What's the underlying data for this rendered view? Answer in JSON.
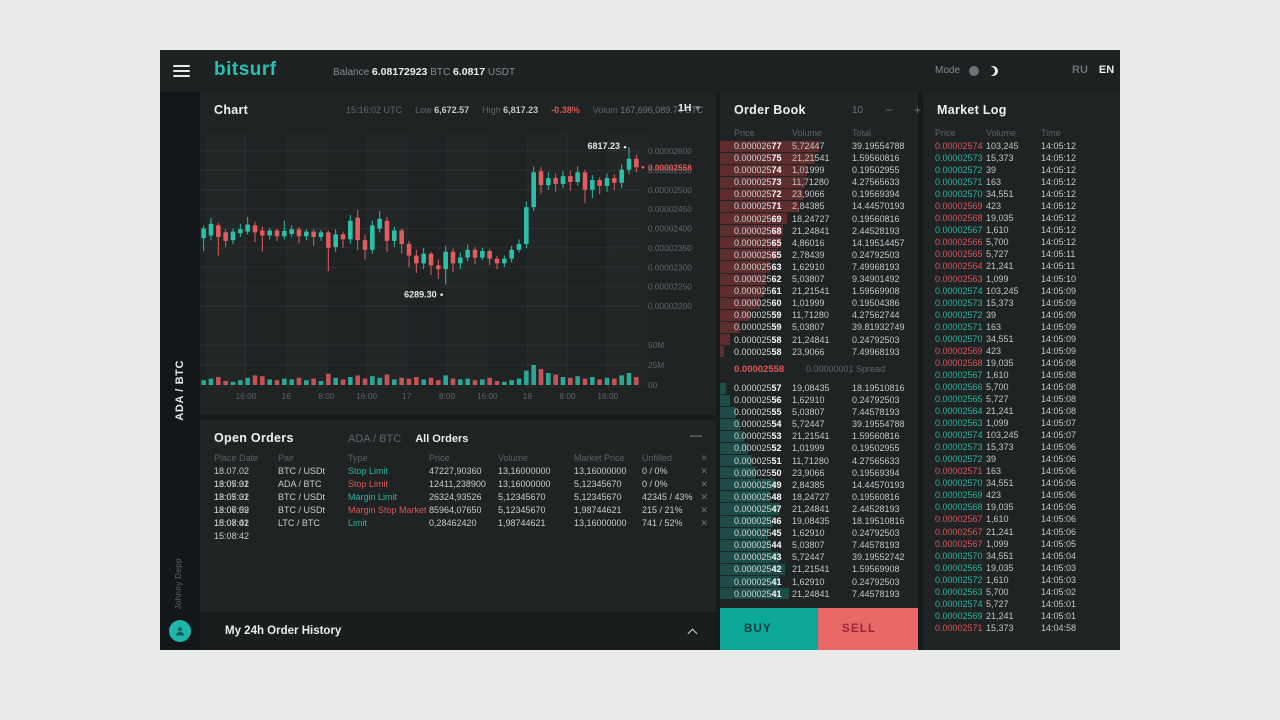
{
  "colors": {
    "accent_teal": "#29c2b2",
    "accent_red": "#e15c5e",
    "candle_up": "#2bc0a9",
    "candle_down": "#e15c5e",
    "buy_bg": "#0ca99b",
    "sell_bg": "#e76867",
    "panel_bg": "#1f2324",
    "window_bg": "#17191b",
    "text_muted": "#5f6567",
    "text_light": "#eceeee"
  },
  "icons": {
    "caret": "▾",
    "minus": "−",
    "plus": "+",
    "close": "✕",
    "collapse": "—"
  },
  "topbar": {
    "logo": "bitsurf",
    "balance_label": "Balance",
    "balance_btc": "6.08172923",
    "btc_unit": "BTC",
    "balance_usdt": "6.0817",
    "usdt_unit": "USDT",
    "mode_label": "Mode",
    "lang_ru": "RU",
    "lang_en": "EN"
  },
  "sidebar": {
    "pair": "ADA / BTC",
    "username": "Johnny Depp"
  },
  "chart": {
    "title": "Chart",
    "time": "15:16:02 UTC",
    "low_label": "Low",
    "low": "6,672.57",
    "high_label": "High",
    "high": "6,817.23",
    "change": "-0.38%",
    "volume_label": "Volum",
    "volume": "167,696,089.74 BTC",
    "interval": "1H",
    "high_marker": "6817.23",
    "low_marker": "6289.30",
    "current_price": "0.00002558"
  },
  "chart_data": {
    "type": "candlestick",
    "title": "ADA/BTC 1H candlestick with volume",
    "y_axis": {
      "ticks": [
        "0.00002600",
        "0.00002550",
        "0.00002500",
        "0.00002450",
        "0.00002400",
        "0.00002350",
        "0.00002300",
        "0.00002250",
        "0.00002200"
      ],
      "tick_values": [
        2600,
        2550,
        2500,
        2450,
        2400,
        2350,
        2300,
        2250,
        2200
      ],
      "unit": "price x 1e-8 BTC"
    },
    "x_axis": {
      "ticks": [
        "16:00",
        "16",
        "8:00",
        "16:00",
        "17",
        "8:00",
        "16:00",
        "18",
        "8:00",
        "16:00"
      ]
    },
    "volume_axis": {
      "ticks": [
        "50M",
        "25M",
        "00"
      ]
    },
    "current_price": "0.00002558",
    "annotations": {
      "high": "6817.23",
      "low": "6289.30"
    },
    "candles_ohlc": [
      [
        2375,
        2408,
        2342,
        2400
      ],
      [
        2382,
        2428,
        2370,
        2412
      ],
      [
        2408,
        2415,
        2330,
        2378
      ],
      [
        2390,
        2398,
        2352,
        2368
      ],
      [
        2370,
        2400,
        2360,
        2392
      ],
      [
        2388,
        2412,
        2378,
        2398
      ],
      [
        2392,
        2430,
        2385,
        2410
      ],
      [
        2408,
        2418,
        2365,
        2390
      ],
      [
        2395,
        2405,
        2340,
        2382
      ],
      [
        2382,
        2402,
        2372,
        2395
      ],
      [
        2395,
        2400,
        2368,
        2380
      ],
      [
        2380,
        2420,
        2372,
        2394
      ],
      [
        2386,
        2408,
        2378,
        2398
      ],
      [
        2398,
        2404,
        2362,
        2380
      ],
      [
        2380,
        2398,
        2370,
        2392
      ],
      [
        2392,
        2398,
        2355,
        2378
      ],
      [
        2378,
        2396,
        2368,
        2390
      ],
      [
        2390,
        2395,
        2290,
        2350
      ],
      [
        2352,
        2398,
        2340,
        2385
      ],
      [
        2385,
        2392,
        2350,
        2372
      ],
      [
        2372,
        2435,
        2360,
        2420
      ],
      [
        2428,
        2448,
        2345,
        2370
      ],
      [
        2370,
        2385,
        2320,
        2345
      ],
      [
        2345,
        2420,
        2335,
        2408
      ],
      [
        2400,
        2445,
        2390,
        2425
      ],
      [
        2420,
        2430,
        2340,
        2368
      ],
      [
        2368,
        2405,
        2352,
        2395
      ],
      [
        2395,
        2400,
        2335,
        2360
      ],
      [
        2360,
        2368,
        2300,
        2330
      ],
      [
        2330,
        2345,
        2285,
        2310
      ],
      [
        2310,
        2350,
        2295,
        2335
      ],
      [
        2335,
        2340,
        2280,
        2305
      ],
      [
        2305,
        2320,
        2270,
        2295
      ],
      [
        2295,
        2355,
        2255,
        2340
      ],
      [
        2340,
        2348,
        2288,
        2310
      ],
      [
        2310,
        2338,
        2295,
        2325
      ],
      [
        2325,
        2358,
        2315,
        2345
      ],
      [
        2345,
        2352,
        2308,
        2325
      ],
      [
        2325,
        2350,
        2318,
        2342
      ],
      [
        2342,
        2348,
        2305,
        2322
      ],
      [
        2322,
        2330,
        2295,
        2310
      ],
      [
        2310,
        2330,
        2300,
        2322
      ],
      [
        2322,
        2355,
        2312,
        2345
      ],
      [
        2345,
        2372,
        2338,
        2360
      ],
      [
        2360,
        2470,
        2350,
        2455
      ],
      [
        2455,
        2560,
        2445,
        2545
      ],
      [
        2548,
        2558,
        2490,
        2512
      ],
      [
        2512,
        2545,
        2500,
        2530
      ],
      [
        2530,
        2542,
        2495,
        2515
      ],
      [
        2515,
        2548,
        2505,
        2535
      ],
      [
        2535,
        2550,
        2498,
        2520
      ],
      [
        2520,
        2560,
        2510,
        2545
      ],
      [
        2545,
        2552,
        2465,
        2500
      ],
      [
        2500,
        2538,
        2478,
        2525
      ],
      [
        2525,
        2532,
        2488,
        2510
      ],
      [
        2510,
        2542,
        2495,
        2530
      ],
      [
        2530,
        2540,
        2500,
        2518
      ],
      [
        2518,
        2565,
        2505,
        2552
      ],
      [
        2552,
        2610,
        2540,
        2580
      ],
      [
        2580,
        2590,
        2545,
        2558
      ]
    ],
    "volumes_m": [
      6,
      8,
      10,
      5,
      4,
      6,
      9,
      12,
      11,
      7,
      6,
      8,
      7,
      9,
      6,
      8,
      5,
      14,
      9,
      7,
      10,
      12,
      8,
      11,
      9,
      13,
      7,
      9,
      8,
      10,
      7,
      9,
      6,
      12,
      8,
      7,
      8,
      6,
      7,
      9,
      5,
      4,
      6,
      8,
      18,
      25,
      20,
      15,
      13,
      10,
      9,
      11,
      8,
      10,
      7,
      9,
      8,
      12,
      15,
      10
    ]
  },
  "order_book": {
    "title": "Order Book",
    "depth_level": "10",
    "columns": [
      "Price",
      "Volume",
      "Total"
    ],
    "sells": [
      {
        "price": "0.00002677",
        "volume": "5,72447",
        "total": "39.19554788",
        "depth": 0.5
      },
      {
        "price": "0.00002575",
        "volume": "21,21541",
        "total": "1.59560816",
        "depth": 0.48
      },
      {
        "price": "0.00002574",
        "volume": "1,01999",
        "total": "0.19502955",
        "depth": 0.44
      },
      {
        "price": "0.00002573",
        "volume": "11,71280",
        "total": "4.27565633",
        "depth": 0.43
      },
      {
        "price": "0.00002572",
        "volume": "23,9066",
        "total": "0.19569394",
        "depth": 0.42
      },
      {
        "price": "0.00002571",
        "volume": "2,84385",
        "total": "14.44570193",
        "depth": 0.4
      },
      {
        "price": "0.00002569",
        "volume": "18,24727",
        "total": "0.19560816",
        "depth": 0.34
      },
      {
        "price": "0.00002568",
        "volume": "21,24841",
        "total": "2.44528193",
        "depth": 0.32
      },
      {
        "price": "0.00002565",
        "volume": "4,86016",
        "total": "14.19514457",
        "depth": 0.31
      },
      {
        "price": "0.00002565",
        "volume": "2,78439",
        "total": "0.24792503",
        "depth": 0.29
      },
      {
        "price": "0.00002563",
        "volume": "1,62910",
        "total": "7.49968193",
        "depth": 0.25
      },
      {
        "price": "0.00002562",
        "volume": "5,03807",
        "total": "9.34901492",
        "depth": 0.23
      },
      {
        "price": "0.00002561",
        "volume": "21,21541",
        "total": "1.59569908",
        "depth": 0.22
      },
      {
        "price": "0.00002560",
        "volume": "1,01999",
        "total": "0.19504386",
        "depth": 0.2
      },
      {
        "price": "0.00002559",
        "volume": "11,71280",
        "total": "4.27562744",
        "depth": 0.15
      },
      {
        "price": "0.00002559",
        "volume": "5,03807",
        "total": "39.81932749",
        "depth": 0.1
      },
      {
        "price": "0.00002558",
        "volume": "21,24841",
        "total": "0.24792503",
        "depth": 0.05
      },
      {
        "price": "0.00002558",
        "volume": "23,9066",
        "total": "7.49968193",
        "depth": 0.02
      }
    ],
    "spread": {
      "price": "0.00002558",
      "text": "0.00000001 Spread"
    },
    "buys": [
      {
        "price": "0.00002557",
        "volume": "19,08435",
        "total": "18.19510816",
        "depth": 0.03
      },
      {
        "price": "0.00002556",
        "volume": "1,62910",
        "total": "0.24792503",
        "depth": 0.05
      },
      {
        "price": "0.00002555",
        "volume": "5,03807",
        "total": "7.44578193",
        "depth": 0.08
      },
      {
        "price": "0.00002554",
        "volume": "5,72447",
        "total": "39.19554788",
        "depth": 0.1
      },
      {
        "price": "0.00002553",
        "volume": "21,21541",
        "total": "1.59560816",
        "depth": 0.12
      },
      {
        "price": "0.00002552",
        "volume": "1,01999",
        "total": "0.19502955",
        "depth": 0.14
      },
      {
        "price": "0.00002551",
        "volume": "11,71280",
        "total": "4.27565633",
        "depth": 0.16
      },
      {
        "price": "0.00002550",
        "volume": "23,9066",
        "total": "0.19569394",
        "depth": 0.18
      },
      {
        "price": "0.00002549",
        "volume": "2,84385",
        "total": "14.44570193",
        "depth": 0.28
      },
      {
        "price": "0.00002548",
        "volume": "18,24727",
        "total": "0.19560816",
        "depth": 0.25
      },
      {
        "price": "0.00002547",
        "volume": "21,24841",
        "total": "2.44528193",
        "depth": 0.3
      },
      {
        "price": "0.00002546",
        "volume": "19,08435",
        "total": "18.19510816",
        "depth": 0.27
      },
      {
        "price": "0.00002545",
        "volume": "1,62910",
        "total": "0.24792503",
        "depth": 0.24
      },
      {
        "price": "0.00002544",
        "volume": "5,03807",
        "total": "7.44578193",
        "depth": 0.26
      },
      {
        "price": "0.00002543",
        "volume": "5,72447",
        "total": "39.19552742",
        "depth": 0.3
      },
      {
        "price": "0.00002542",
        "volume": "21,21541",
        "total": "1.59569908",
        "depth": 0.33
      },
      {
        "price": "0.00002541",
        "volume": "1,62910",
        "total": "0.24792503",
        "depth": 0.3
      },
      {
        "price": "0.00002541",
        "volume": "21,24841",
        "total": "7.44578193",
        "depth": 0.35
      }
    ],
    "buy_label": "BUY",
    "sell_label": "SELL"
  },
  "market_log": {
    "title": "Market Log",
    "columns": [
      "Price",
      "Volume",
      "Time"
    ],
    "rows": [
      {
        "price": "0.00002574",
        "dir": "down",
        "volume": "103,245",
        "time": "14:05:12"
      },
      {
        "price": "0.00002573",
        "dir": "up",
        "volume": "15,373",
        "time": "14:05:12"
      },
      {
        "price": "0.00002572",
        "dir": "up",
        "volume": "39",
        "time": "14:05:12"
      },
      {
        "price": "0.00002571",
        "dir": "up",
        "volume": "163",
        "time": "14:05:12"
      },
      {
        "price": "0.00002570",
        "dir": "up",
        "volume": "34,551",
        "time": "14:05:12"
      },
      {
        "price": "0.00002569",
        "dir": "down",
        "volume": "423",
        "time": "14:05:12"
      },
      {
        "price": "0.00002568",
        "dir": "down",
        "volume": "19,035",
        "time": "14:05:12"
      },
      {
        "price": "0.00002567",
        "dir": "up",
        "volume": "1,610",
        "time": "14:05:12"
      },
      {
        "price": "0.00002566",
        "dir": "down",
        "volume": "5,700",
        "time": "14:05:12"
      },
      {
        "price": "0.00002565",
        "dir": "down",
        "volume": "5,727",
        "time": "14:05:11"
      },
      {
        "price": "0.00002564",
        "dir": "down",
        "volume": "21,241",
        "time": "14:05:11"
      },
      {
        "price": "0.00002563",
        "dir": "down",
        "volume": "1,099",
        "time": "14:05:10"
      },
      {
        "price": "0.00002574",
        "dir": "up",
        "volume": "103,245",
        "time": "14:05:09"
      },
      {
        "price": "0.00002573",
        "dir": "up",
        "volume": "15,373",
        "time": "14:05:09"
      },
      {
        "price": "0.00002572",
        "dir": "up",
        "volume": "39",
        "time": "14:05:09"
      },
      {
        "price": "0.00002571",
        "dir": "up",
        "volume": "163",
        "time": "14:05:09"
      },
      {
        "price": "0.00002570",
        "dir": "up",
        "volume": "34,551",
        "time": "14:05:09"
      },
      {
        "price": "0.00002569",
        "dir": "down",
        "volume": "423",
        "time": "14:05:09"
      },
      {
        "price": "0.00002568",
        "dir": "down",
        "volume": "19,035",
        "time": "14:05:08"
      },
      {
        "price": "0.00002567",
        "dir": "up",
        "volume": "1,610",
        "time": "14:05:08"
      },
      {
        "price": "0.00002566",
        "dir": "up",
        "volume": "5,700",
        "time": "14:05:08"
      },
      {
        "price": "0.00002565",
        "dir": "up",
        "volume": "5,727",
        "time": "14:05:08"
      },
      {
        "price": "0.00002564",
        "dir": "up",
        "volume": "21,241",
        "time": "14:05:08"
      },
      {
        "price": "0.00002563",
        "dir": "up",
        "volume": "1,099",
        "time": "14:05:07"
      },
      {
        "price": "0.00002574",
        "dir": "up",
        "volume": "103,245",
        "time": "14:05:07"
      },
      {
        "price": "0.00002573",
        "dir": "up",
        "volume": "15,373",
        "time": "14:05:06"
      },
      {
        "price": "0.00002572",
        "dir": "up",
        "volume": "39",
        "time": "14:05:06"
      },
      {
        "price": "0.00002571",
        "dir": "down",
        "volume": "163",
        "time": "14:05:06"
      },
      {
        "price": "0.00002570",
        "dir": "up",
        "volume": "34,551",
        "time": "14:05:06"
      },
      {
        "price": "0.00002569",
        "dir": "up",
        "volume": "423",
        "time": "14:05:06"
      },
      {
        "price": "0.00002568",
        "dir": "up",
        "volume": "19,035",
        "time": "14:05:06"
      },
      {
        "price": "0.00002567",
        "dir": "down",
        "volume": "1,610",
        "time": "14:05:06"
      },
      {
        "price": "0.00002567",
        "dir": "down",
        "volume": "21,241",
        "time": "14:05:06"
      },
      {
        "price": "0.00002567",
        "dir": "down",
        "volume": "1,099",
        "time": "14:05:05"
      },
      {
        "price": "0.00002570",
        "dir": "up",
        "volume": "34,551",
        "time": "14:05:04"
      },
      {
        "price": "0.00002565",
        "dir": "up",
        "volume": "19,035",
        "time": "14:05:03"
      },
      {
        "price": "0.00002572",
        "dir": "up",
        "volume": "1,610",
        "time": "14:05:03"
      },
      {
        "price": "0.00002563",
        "dir": "up",
        "volume": "5,700",
        "time": "14:05:02"
      },
      {
        "price": "0.00002574",
        "dir": "up",
        "volume": "5,727",
        "time": "14:05:01"
      },
      {
        "price": "0.00002569",
        "dir": "up",
        "volume": "21,241",
        "time": "14:05:01"
      },
      {
        "price": "0.00002571",
        "dir": "down",
        "volume": "15,373",
        "time": "14:04:58"
      }
    ]
  },
  "open_orders": {
    "title": "Open Orders",
    "tab_pair": "ADA / BTC",
    "tab_all": "All Orders",
    "columns": [
      "Place Date",
      "Pair",
      "Type",
      "Price",
      "Volume",
      "Market Price",
      "Unfilled"
    ],
    "rows": [
      {
        "date": "18.07.02 13:05:31",
        "pair": "BTC / USDt",
        "type": "Stop Limit",
        "side": "up",
        "price": "47227,90360",
        "volume": "13,16000000",
        "market_price": "13,16000000",
        "unfilled": "0 / 0%"
      },
      {
        "date": "18.07.02 13:05:31",
        "pair": "ADA / BTC",
        "type": "Stop Limit",
        "side": "down",
        "price": "12411,238900",
        "volume": "13,16000000",
        "market_price": "5,12345670",
        "unfilled": "0 / 0%"
      },
      {
        "date": "18.07.02 13:06:59",
        "pair": "BTC / USDt",
        "type": "Margin Limit",
        "side": "up",
        "price": "26324,93526",
        "volume": "5,12345670",
        "market_price": "5,12345670",
        "unfilled": "42345 / 43%"
      },
      {
        "date": "18.07.02 15:08:41",
        "pair": "BTC / USDt",
        "type": "Margin Stop Market",
        "side": "down",
        "price": "85964,07650",
        "volume": "5,12345670",
        "market_price": "1,98744621",
        "unfilled": "215 / 21%"
      },
      {
        "date": "18.07.02 15:08:42",
        "pair": "LTC / BTC",
        "type": "Limit",
        "side": "up",
        "price": "0,28462420",
        "volume": "1,98744621",
        "market_price": "13,16000000",
        "unfilled": "741 / 52%"
      }
    ]
  },
  "history_bar": {
    "title": "My 24h Order History"
  }
}
